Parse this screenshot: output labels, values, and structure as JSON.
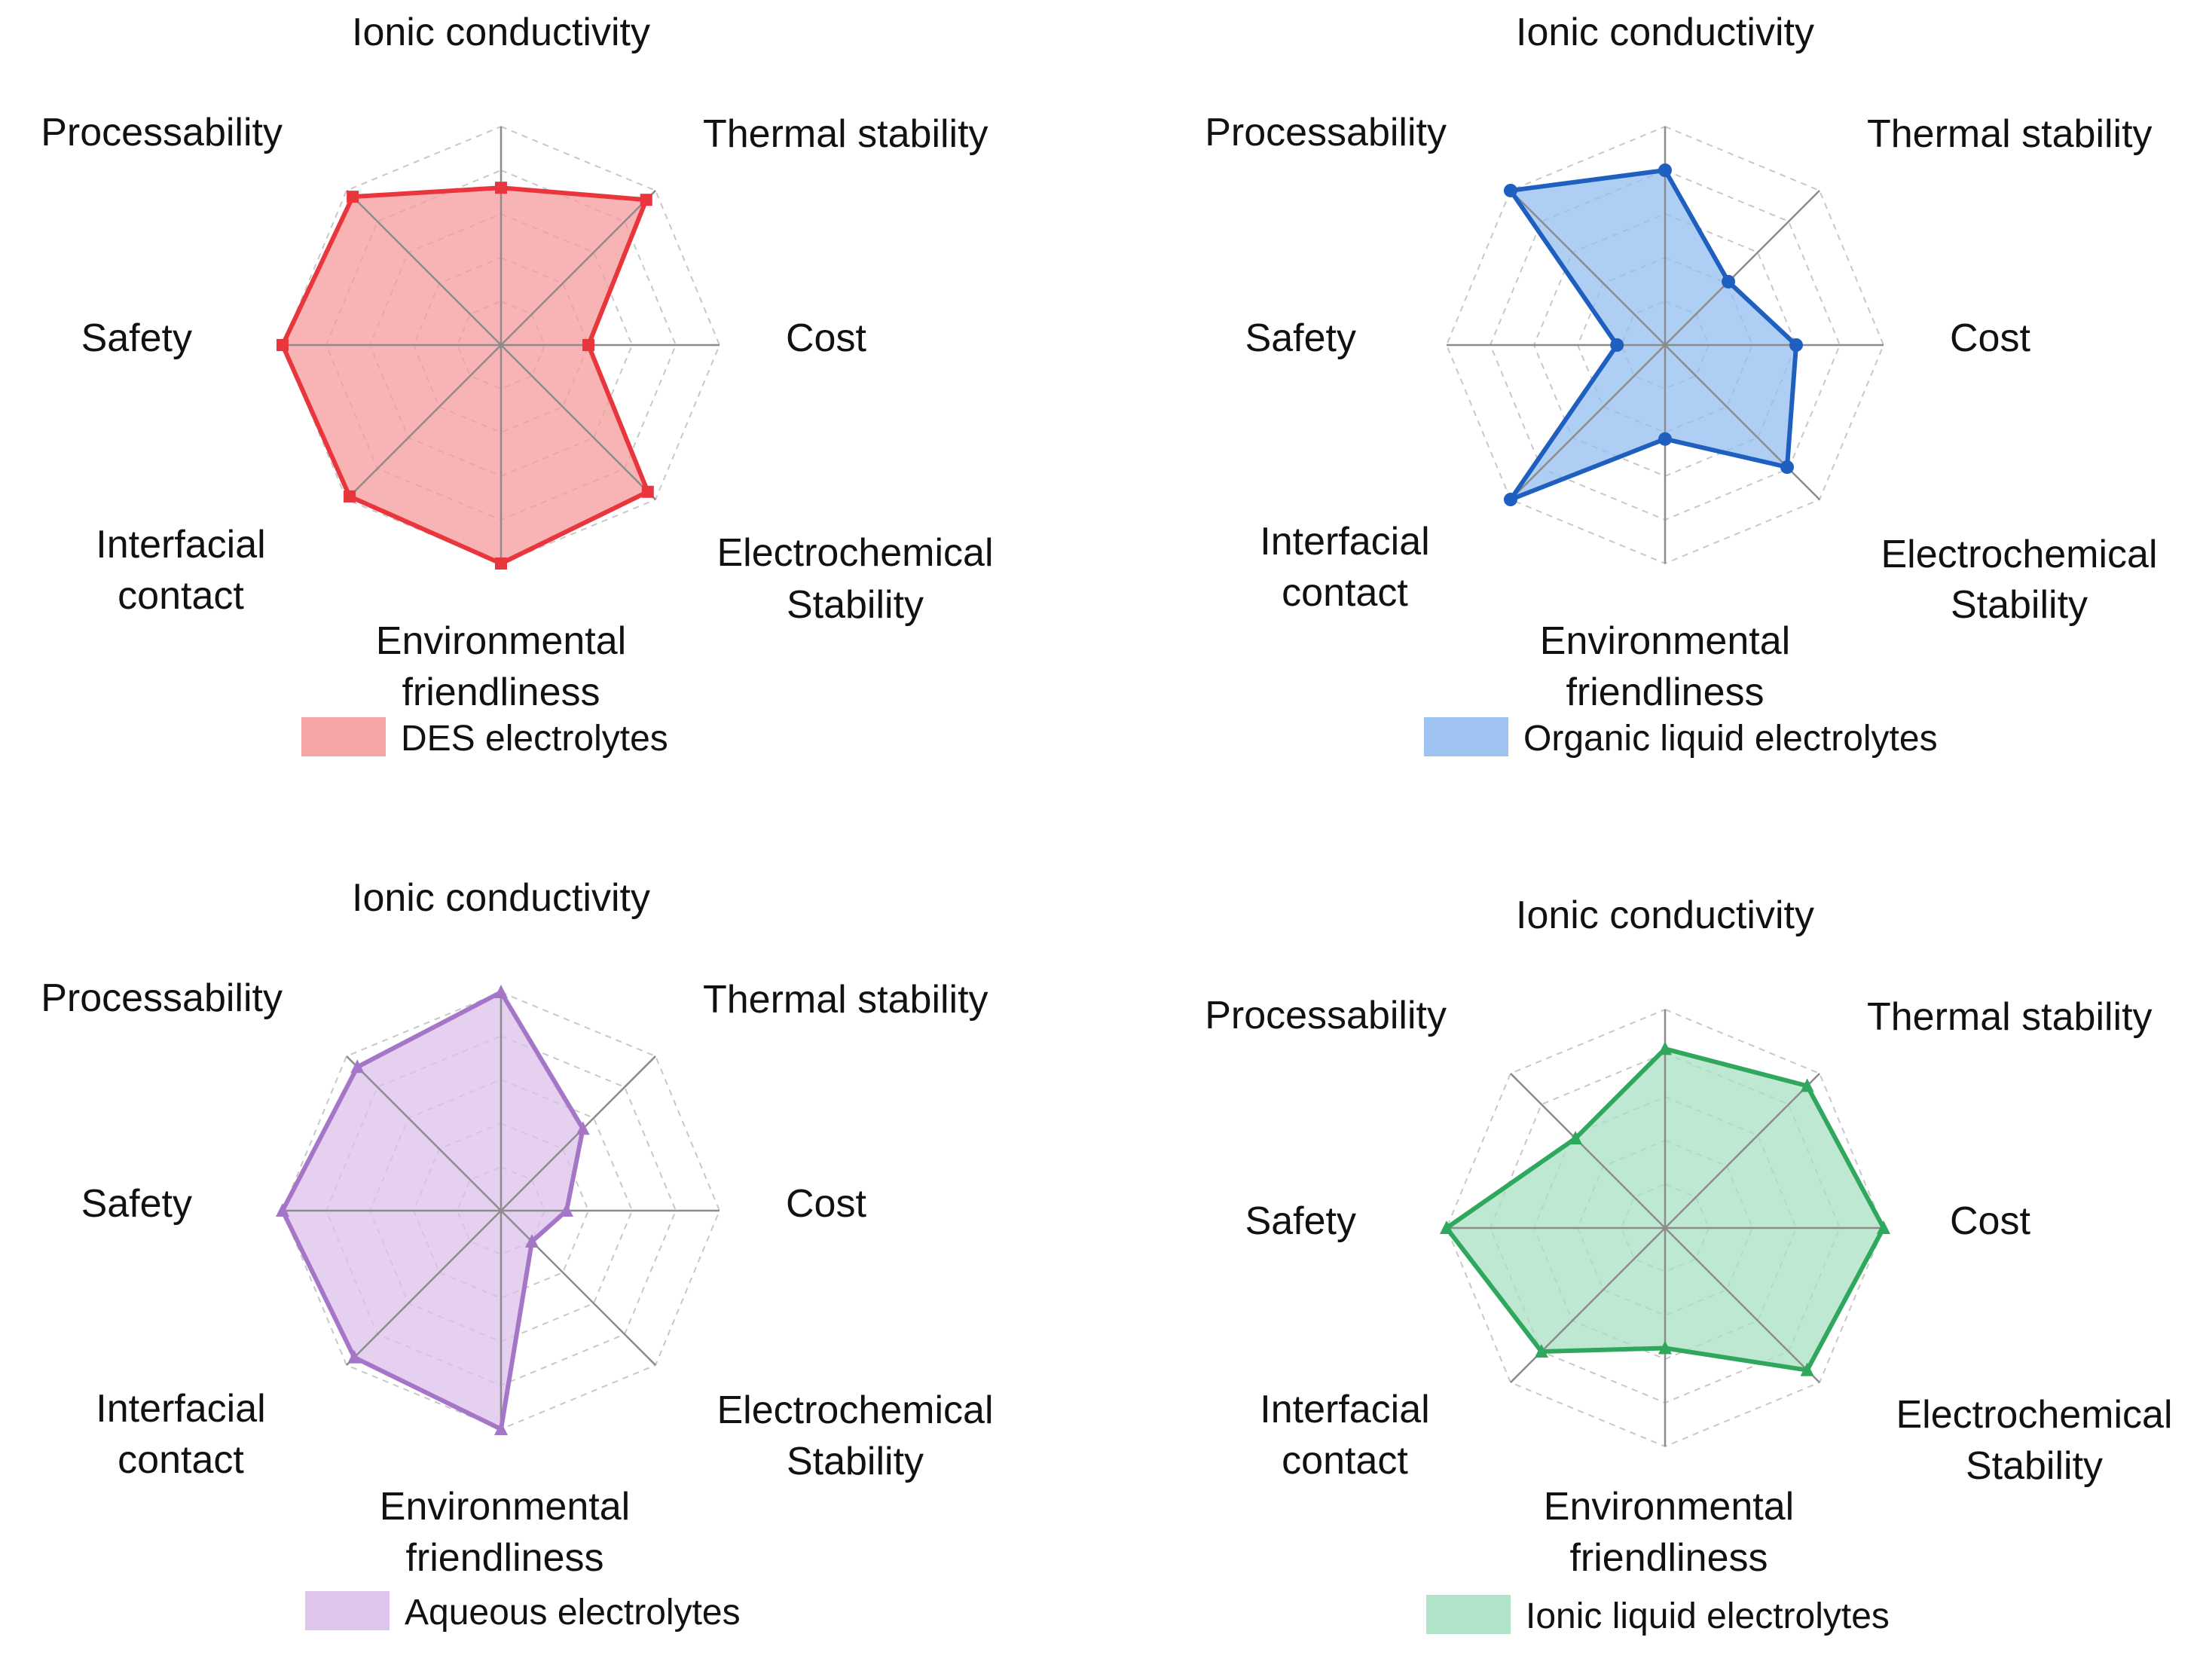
{
  "chart_data": [
    {
      "type": "radar",
      "series_name": "DES electrolytes",
      "color": "#e8363c",
      "fill": "#f59a9c",
      "marker": "square",
      "axes": [
        "Ionic conductivity",
        "Thermal stability",
        "Cost",
        "Electrochemical Stability",
        "Environmental friendliness",
        "Interfacial contact",
        "Safety",
        "Processability"
      ],
      "values": [
        0.72,
        0.94,
        0.4,
        0.95,
        1.0,
        0.98,
        1.0,
        0.96
      ],
      "range": [
        0,
        1
      ],
      "rings": 5
    },
    {
      "type": "radar",
      "series_name": "Organic liquid electrolytes",
      "color": "#1f5fbf",
      "fill": "#93bdf0",
      "marker": "circle",
      "axes": [
        "Ionic conductivity",
        "Thermal stability",
        "Cost",
        "Electrochemical Stability",
        "Environmental friendliness",
        "Interfacial contact",
        "Safety",
        "Processability"
      ],
      "values": [
        0.8,
        0.41,
        0.6,
        0.79,
        0.43,
        1.0,
        0.22,
        1.0
      ],
      "range": [
        0,
        1
      ],
      "rings": 5
    },
    {
      "type": "radar",
      "series_name": "Aqueous electrolytes",
      "color": "#a576c8",
      "fill": "#dcc0eb",
      "marker": "triangle",
      "axes": [
        "Ionic conductivity",
        "Thermal stability",
        "Cost",
        "Electrochemical Stability",
        "Environmental friendliness",
        "Interfacial contact",
        "Safety",
        "Processability"
      ],
      "values": [
        1.0,
        0.53,
        0.3,
        0.2,
        1.0,
        0.95,
        1.0,
        0.93
      ],
      "range": [
        0,
        1
      ],
      "rings": 5
    },
    {
      "type": "radar",
      "series_name": "Ionic liquid electrolytes",
      "color": "#2fa85e",
      "fill": "#a8e0c2",
      "marker": "triangle",
      "axes": [
        "Ionic conductivity",
        "Thermal stability",
        "Cost",
        "Electrochemical Stability",
        "Environmental friendliness",
        "Interfacial contact",
        "Safety",
        "Processability"
      ],
      "values": [
        0.82,
        0.92,
        1.0,
        0.92,
        0.55,
        0.8,
        1.0,
        0.58
      ],
      "range": [
        0,
        1
      ],
      "rings": 5
    }
  ]
}
